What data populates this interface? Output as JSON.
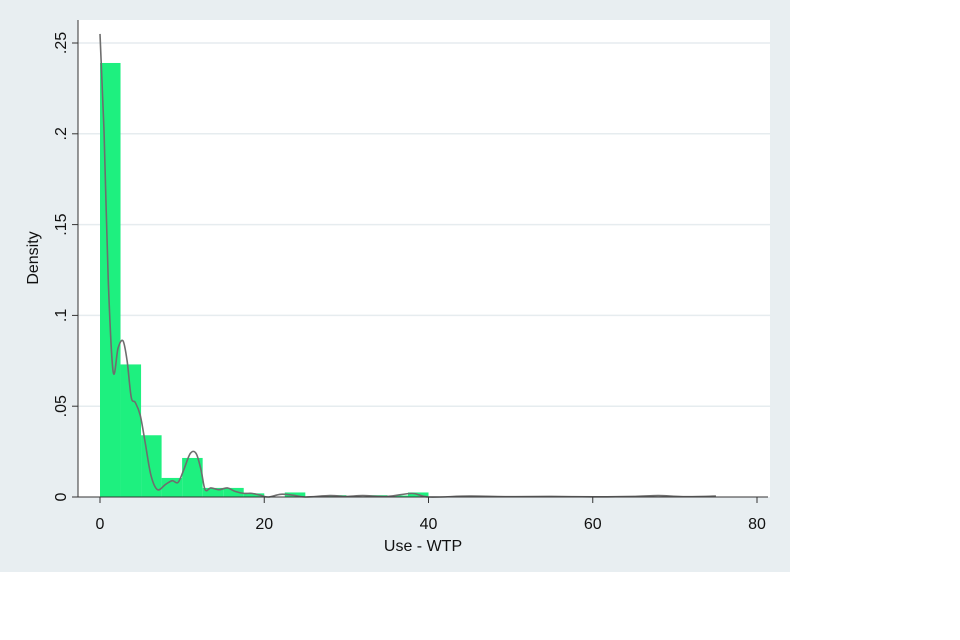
{
  "chart_data": {
    "type": "bar",
    "subtype": "histogram with density curve",
    "title": "",
    "xlabel": "Use - WTP",
    "ylabel": "Density",
    "xlim": [
      0,
      80
    ],
    "ylim": [
      0,
      0.25
    ],
    "x_ticks": [
      0,
      20,
      40,
      60,
      80
    ],
    "x_tick_labels": [
      "0",
      "20",
      "40",
      "60",
      "80"
    ],
    "y_ticks": [
      0,
      0.05,
      0.1,
      0.15,
      0.2,
      0.25
    ],
    "y_tick_labels": [
      "0",
      ".05",
      ".1",
      ".15",
      ".2",
      ".25"
    ],
    "grid": "horizontal",
    "bin_width": 2.5,
    "bins": [
      {
        "start": 0,
        "density": 0.239
      },
      {
        "start": 2.5,
        "density": 0.073
      },
      {
        "start": 5,
        "density": 0.034
      },
      {
        "start": 7.5,
        "density": 0.0105
      },
      {
        "start": 10,
        "density": 0.0215
      },
      {
        "start": 12.5,
        "density": 0.005
      },
      {
        "start": 15,
        "density": 0.005
      },
      {
        "start": 17.5,
        "density": 0.002
      },
      {
        "start": 22.5,
        "density": 0.0025
      },
      {
        "start": 27.5,
        "density": 0.001
      },
      {
        "start": 32.5,
        "density": 0.001
      },
      {
        "start": 35,
        "density": 0.0008
      },
      {
        "start": 37.5,
        "density": 0.0025
      }
    ],
    "density_curve": {
      "x": [
        0,
        0.5,
        1,
        1.6,
        2.2,
        2.8,
        3.3,
        3.8,
        4.3,
        4.9,
        5.5,
        6.2,
        7,
        8,
        8.8,
        9.5,
        10.2,
        11,
        11.7,
        12.3,
        12.8,
        13.5,
        14.5,
        15.5,
        16.5,
        17.5,
        18.5,
        19.5,
        20.5,
        22,
        23.5,
        25,
        28,
        30,
        32,
        35,
        38,
        40,
        45,
        50,
        55,
        60,
        65,
        68,
        71,
        75
      ],
      "y": [
        0.255,
        0.2,
        0.12,
        0.069,
        0.082,
        0.086,
        0.075,
        0.055,
        0.052,
        0.045,
        0.03,
        0.012,
        0.004,
        0.007,
        0.009,
        0.008,
        0.015,
        0.024,
        0.024,
        0.015,
        0.004,
        0.005,
        0.004,
        0.005,
        0.003,
        0.002,
        0.002,
        0.001,
        0,
        0.0015,
        0.001,
        0,
        0.0008,
        0.0003,
        0.0008,
        0.0003,
        0.002,
        0,
        0.0005,
        0.0002,
        0.0003,
        0.0001,
        0.0003,
        0.0008,
        0.0002,
        0.0005
      ]
    },
    "colors": {
      "bars": "#1ef07f",
      "curve": "#6e6e6e",
      "background": "#e8eef1",
      "plot": "#ffffff",
      "grid": "#e6ecef"
    }
  }
}
